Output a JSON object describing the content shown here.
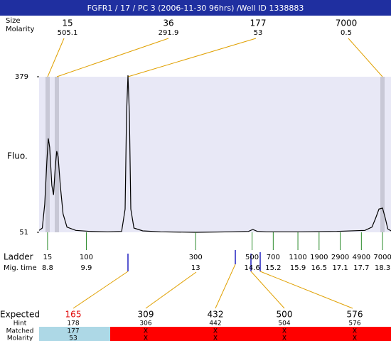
{
  "title": "FGFR1 / 17 / PC 3 (2006-11-30 96hrs) /Well ID 1338883",
  "peak_labels": {
    "size": "Size",
    "molarity": "Molarity"
  },
  "peaks": [
    {
      "size": "15",
      "molarity": "505.1"
    },
    {
      "size": "36",
      "molarity": "291.9"
    },
    {
      "size": "177",
      "molarity": "53"
    },
    {
      "size": "7000",
      "molarity": "0.5"
    }
  ],
  "ladder": {
    "label": "Ladder",
    "time_label": "Mig. time",
    "sizes": [
      15,
      100,
      300,
      500,
      700,
      1100,
      1900,
      2900,
      4900,
      7000
    ],
    "mig_times": [
      8.8,
      9.9,
      13,
      14.6,
      15.2,
      15.9,
      16.5,
      17.1,
      17.7,
      18.3
    ]
  },
  "table": {
    "rows": [
      {
        "label": "Expected",
        "cells": [
          "165",
          "309",
          "432",
          "500",
          "576"
        ]
      },
      {
        "label": "Hint",
        "cells": [
          "178",
          "306",
          "442",
          "504",
          "576"
        ]
      },
      {
        "label": "Matched",
        "cells": [
          "177",
          "X",
          "X",
          "X",
          "X"
        ]
      },
      {
        "label": "Molarity",
        "cells": [
          "53",
          "X",
          "X",
          "X",
          "X"
        ]
      }
    ]
  },
  "chart_data": {
    "type": "line",
    "ylabel": "Fluo.",
    "color": "#000000",
    "x": [
      8.56,
      8.65,
      8.72,
      8.78,
      8.82,
      8.86,
      8.92,
      8.97,
      9.02,
      9.06,
      9.1,
      9.16,
      9.24,
      9.35,
      9.6,
      10.0,
      10.5,
      10.9,
      11.0,
      11.04,
      11.08,
      11.12,
      11.16,
      11.25,
      11.5,
      12,
      13,
      14,
      14.5,
      14.62,
      14.75,
      15,
      16,
      17,
      17.8,
      18.0,
      18.1,
      18.2,
      18.3,
      18.38,
      18.45,
      18.54
    ],
    "values": [
      55,
      60,
      110,
      200,
      249,
      230,
      150,
      130,
      190,
      222,
      210,
      150,
      90,
      62,
      55,
      53,
      52,
      53,
      100,
      300,
      382,
      300,
      100,
      60,
      54,
      52,
      51,
      52,
      53,
      57,
      53,
      52,
      52,
      53,
      55,
      62,
      80,
      100,
      102,
      80,
      58,
      54
    ],
    "xlim": [
      8.56,
      18.54
    ],
    "ylim": [
      51,
      379
    ],
    "yticks": [
      51,
      379
    ]
  }
}
